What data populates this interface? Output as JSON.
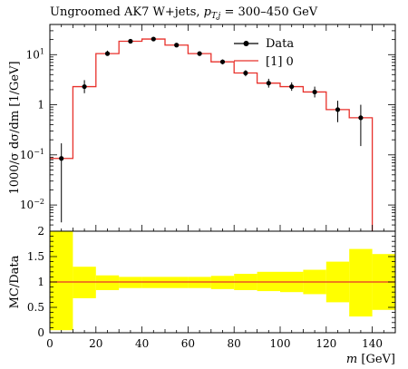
{
  "chart_data": {
    "type": "line",
    "title_main": "Ungroomed AK7 W+jets, ",
    "title_var": "p",
    "title_sub": "T,j",
    "title_range": " = 300–450 GeV",
    "xlabel_var": "m",
    "xlabel_unit": " [GeV]",
    "ylabel": "1000/σ dσ/dm [1/GeV]",
    "ratio_ylabel": "MC/Data",
    "xlim": [
      0,
      150
    ],
    "ylim": [
      0.003,
      40
    ],
    "yscale": "log",
    "ratio_ylim": [
      0,
      2
    ],
    "legend_position": "top-right",
    "x_ticks": [
      "0",
      "20",
      "40",
      "60",
      "80",
      "100",
      "120",
      "140"
    ],
    "y_ticks_main": [
      {
        "base": "10",
        "exp": "1",
        "value": 10
      },
      {
        "base": "1",
        "exp": "",
        "value": 1
      },
      {
        "base": "10",
        "exp": "−1",
        "value": 0.1
      },
      {
        "base": "10",
        "exp": "−2",
        "value": 0.01
      }
    ],
    "y_ticks_ratio": [
      "0",
      "0.5",
      "1",
      "1.5",
      "2"
    ],
    "series": [
      {
        "name": "Data",
        "color": "#000000",
        "x": [
          5,
          15,
          25,
          35,
          45,
          55,
          65,
          75,
          85,
          95,
          105,
          115,
          125,
          135
        ],
        "y": [
          0.085,
          2.3,
          10.5,
          18.5,
          20.5,
          15.5,
          10.5,
          7.2,
          4.3,
          2.7,
          2.3,
          1.8,
          0.8,
          0.55
        ],
        "err_low": [
          0.0805,
          0.6,
          1.0,
          1.4,
          1.5,
          1.3,
          1.0,
          0.8,
          0.6,
          0.5,
          0.4,
          0.4,
          0.35,
          0.4
        ],
        "err_high": [
          0.085,
          0.8,
          1.5,
          1.4,
          1.5,
          1.3,
          1.0,
          0.8,
          0.6,
          0.6,
          0.5,
          0.5,
          0.4,
          0.45
        ]
      },
      {
        "name": "[1] 0",
        "color": "#e8312b",
        "type": "step",
        "bin_edges": [
          0,
          10,
          20,
          30,
          40,
          50,
          60,
          70,
          80,
          90,
          100,
          110,
          120,
          130,
          140
        ],
        "y": [
          0.085,
          2.3,
          10.5,
          18.5,
          20.5,
          15.5,
          10.5,
          7.2,
          4.3,
          2.7,
          2.3,
          1.8,
          0.8,
          0.55
        ]
      }
    ],
    "ratio_band": {
      "color": "#ffff00",
      "bin_edges": [
        0,
        10,
        20,
        30,
        40,
        50,
        60,
        70,
        80,
        90,
        100,
        110,
        120,
        130,
        140,
        150
      ],
      "low": [
        0.05,
        0.68,
        0.84,
        0.88,
        0.88,
        0.88,
        0.88,
        0.86,
        0.84,
        0.82,
        0.8,
        0.76,
        0.6,
        0.32,
        0.45
      ],
      "high": [
        2.0,
        1.3,
        1.13,
        1.1,
        1.1,
        1.1,
        1.1,
        1.12,
        1.16,
        1.2,
        1.2,
        1.24,
        1.4,
        1.65,
        1.55
      ]
    },
    "ratio_line": {
      "value": 1,
      "color": "#e8312b"
    }
  }
}
